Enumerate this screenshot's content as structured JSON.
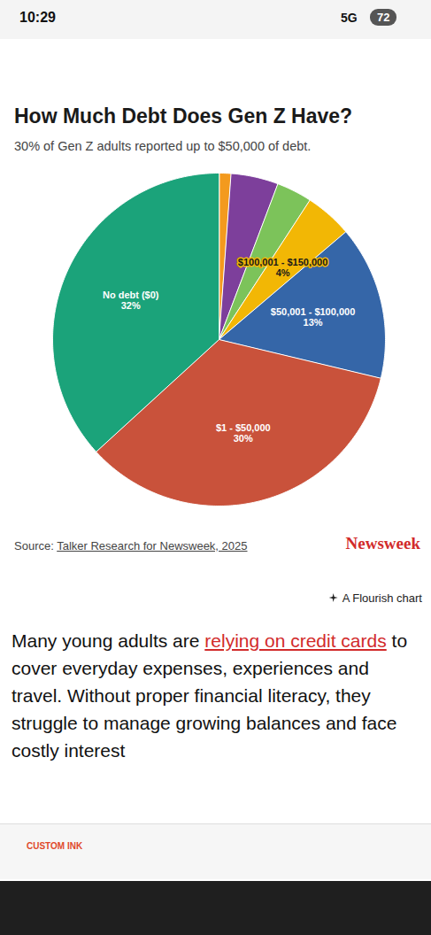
{
  "status_bar": {
    "time": "10:29",
    "network": "5G",
    "battery": "72"
  },
  "chart_data": {
    "type": "pie",
    "title": "How Much Debt Does Gen Z Have?",
    "subtitle": "30% of Gen Z adults reported up to $50,000 of debt.",
    "categories": [
      null,
      null,
      null,
      "$100,001 - $150,000",
      "$50,001 - $100,000",
      "$1 - $50,000",
      "No debt ($0)"
    ],
    "values": [
      1,
      4,
      3,
      4,
      13,
      30,
      32
    ],
    "value_labels": [
      null,
      null,
      null,
      "4%",
      "13%",
      "30%",
      "32%"
    ],
    "colors": [
      "#f39a1e",
      "#7d3f9b",
      "#7cc35a",
      "#f2b705",
      "#3566a8",
      "#c9523b",
      "#1ba37a"
    ],
    "data_labels": true
  },
  "footer": {
    "source_prefix": "Source:",
    "source": "Talker Research for Newsweek, 2025",
    "brand": "Newsweek",
    "credit": "A Flourish chart"
  },
  "article": {
    "before_link": "Many young adults are ",
    "link": "relying on credit cards",
    "after_link": " to cover everyday expenses, experiences and travel. Without proper financial literacy, they struggle to manage growing balances and face costly interest"
  },
  "ad": {
    "text": "CUSTOM INK"
  }
}
